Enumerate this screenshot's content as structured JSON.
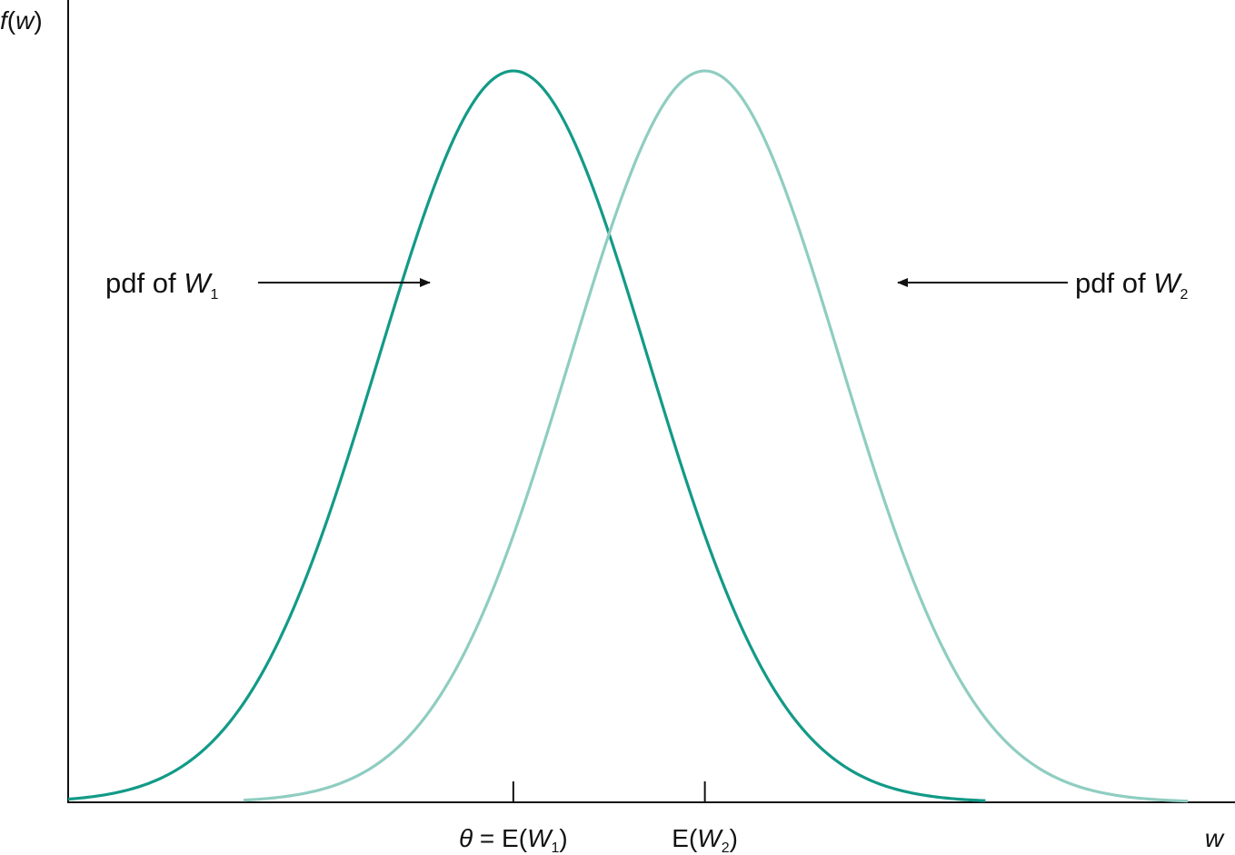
{
  "chart_data": {
    "type": "line",
    "title": "",
    "ylabel": {
      "fn": "f",
      "open": "(",
      "var": "w",
      "close": ")"
    },
    "xlabel": "w",
    "xlim": [
      -3.3,
      5.35
    ],
    "ylim": [
      0,
      1
    ],
    "grid": false,
    "legend": "none",
    "series": [
      {
        "label": {
          "prefix": "pdf of ",
          "var": "W",
          "sub": "1"
        },
        "mean": 0,
        "sd": 1,
        "range": [
          -3.3,
          3.5
        ],
        "color": "#129a87"
      },
      {
        "label": {
          "prefix": "pdf of ",
          "var": "W",
          "sub": "2"
        },
        "mean": 1.42,
        "sd": 1,
        "range": [
          -2.0,
          5.0
        ],
        "color": "#8fcdc1"
      }
    ],
    "ticks": [
      {
        "x": 0,
        "sym": "θ",
        "eq": " = E(",
        "var": "W",
        "sub": "1",
        "close": ")"
      },
      {
        "x": 1.42,
        "sym": "",
        "eq": "E(",
        "var": "W",
        "sub": "2",
        "close": ")"
      }
    ]
  }
}
